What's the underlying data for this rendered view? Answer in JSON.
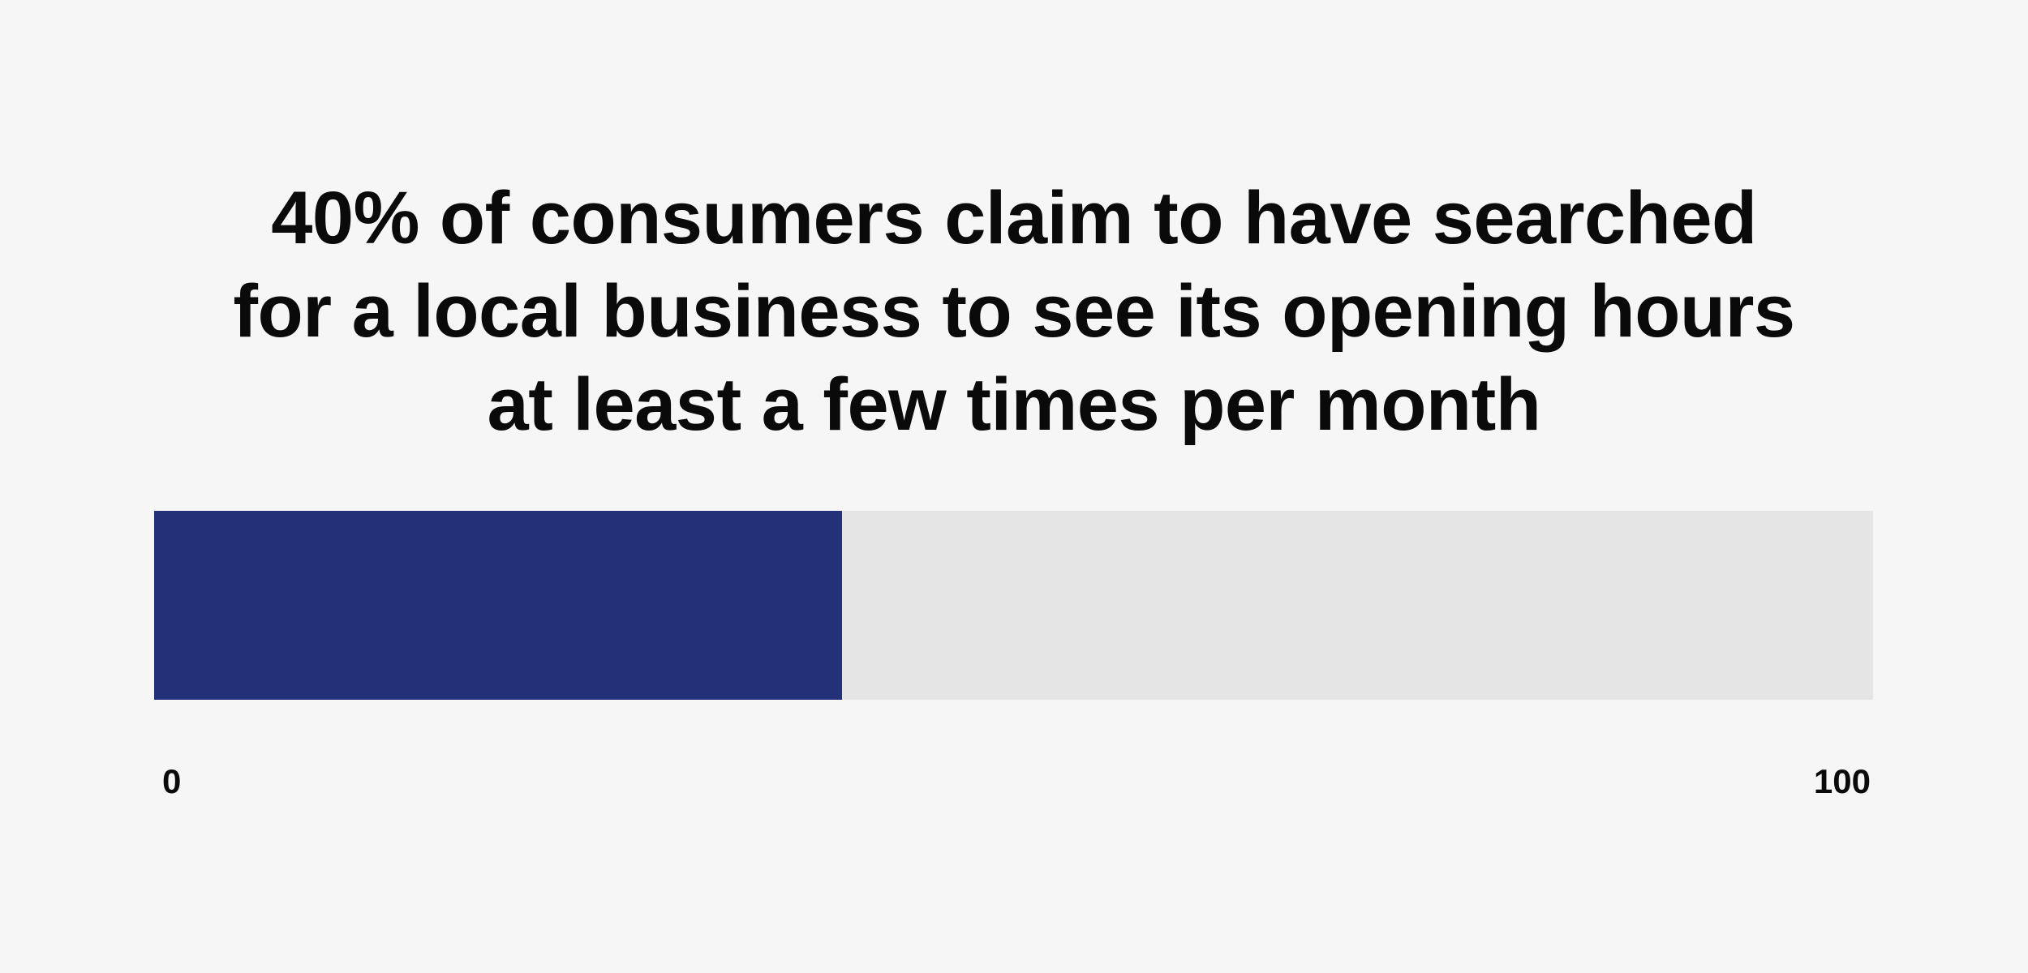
{
  "chart_data": {
    "type": "bar",
    "title_lines": [
      "40% of consumers claim to have searched",
      "for a local business to see its opening hours",
      "at least a few times per month"
    ],
    "values": [
      40
    ],
    "xlim": [
      0,
      100
    ],
    "tick_labels": [
      "0",
      "100"
    ],
    "colors": {
      "fill": "#233278",
      "track": "#e5e5e5",
      "background": "#f6f6f6"
    }
  }
}
